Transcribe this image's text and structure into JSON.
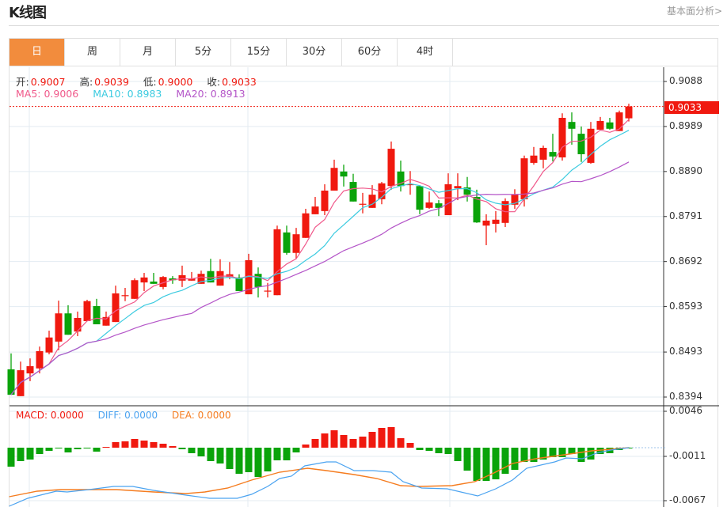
{
  "header": {
    "title": "K线图",
    "link": "基本面分析>"
  },
  "tabs": [
    "日",
    "周",
    "月",
    "5分",
    "15分",
    "30分",
    "60分",
    "4时"
  ],
  "active_tab": 0,
  "ohlc_legend": {
    "open_label": "开:",
    "open": "0.9007",
    "high_label": "高:",
    "high": "0.9039",
    "low_label": "低:",
    "low": "0.9000",
    "close_label": "收:",
    "close": "0.9033"
  },
  "ma_legend": {
    "ma5": "MA5: 0.9006",
    "ma10": "MA10: 0.8983",
    "ma20": "MA20: 0.8913"
  },
  "macd_legend": {
    "macd": "MACD: 0.0000",
    "diff": "DIFF: 0.0000",
    "dea": "DEA: 0.0000"
  },
  "current_price": "0.9033",
  "colors": {
    "up": "#f0190f",
    "down": "#0aa30a",
    "ma5": "#f0588a",
    "ma10": "#3ccbe0",
    "ma20": "#b455c8",
    "diff": "#4ba3f0",
    "dea": "#f57c1f",
    "accent": "#f28c3d"
  },
  "chart_data": [
    {
      "type": "candlestick",
      "title": "K线图",
      "y_ticks": [
        "0.9088",
        "0.8989",
        "0.8890",
        "0.8791",
        "0.8692",
        "0.8593",
        "0.8493",
        "0.8394"
      ],
      "ylim": [
        0.8394,
        0.9088
      ],
      "ohlc": [
        [
          0.8455,
          0.849,
          0.8399,
          0.8399
        ],
        [
          0.8396,
          0.8472,
          0.8396,
          0.8453
        ],
        [
          0.8446,
          0.8479,
          0.8429,
          0.8462
        ],
        [
          0.8457,
          0.8505,
          0.8446,
          0.8495
        ],
        [
          0.8492,
          0.854,
          0.8488,
          0.8525
        ],
        [
          0.8516,
          0.8606,
          0.8497,
          0.8578
        ],
        [
          0.8578,
          0.8596,
          0.8531,
          0.8531
        ],
        [
          0.8538,
          0.8582,
          0.8528,
          0.8568
        ],
        [
          0.8561,
          0.8608,
          0.8561,
          0.8605
        ],
        [
          0.8594,
          0.861,
          0.8554,
          0.8554
        ],
        [
          0.8551,
          0.8582,
          0.8551,
          0.857
        ],
        [
          0.8559,
          0.8639,
          0.8559,
          0.8622
        ],
        [
          0.8617,
          0.8634,
          0.8605,
          0.8618
        ],
        [
          0.861,
          0.8655,
          0.861,
          0.8651
        ],
        [
          0.8646,
          0.8667,
          0.8627,
          0.8657
        ],
        [
          0.8648,
          0.8667,
          0.8643,
          0.8643
        ],
        [
          0.8636,
          0.866,
          0.8631,
          0.8658
        ],
        [
          0.8655,
          0.866,
          0.8643,
          0.8651
        ],
        [
          0.865,
          0.8683,
          0.8636,
          0.8662
        ],
        [
          0.865,
          0.8669,
          0.865,
          0.8655
        ],
        [
          0.8643,
          0.8672,
          0.8643,
          0.8665
        ],
        [
          0.8671,
          0.8698,
          0.8646,
          0.8646
        ],
        [
          0.8639,
          0.8697,
          0.8639,
          0.8671
        ],
        [
          0.8658,
          0.8691,
          0.8653,
          0.8664
        ],
        [
          0.8657,
          0.8664,
          0.8627,
          0.8627
        ],
        [
          0.862,
          0.8709,
          0.862,
          0.8695
        ],
        [
          0.8665,
          0.8679,
          0.8613,
          0.8636
        ],
        [
          0.8627,
          0.8645,
          0.8613,
          0.8628
        ],
        [
          0.8618,
          0.8771,
          0.8618,
          0.8763
        ],
        [
          0.8756,
          0.8771,
          0.8707,
          0.8711
        ],
        [
          0.8711,
          0.8766,
          0.8698,
          0.8752
        ],
        [
          0.8744,
          0.8808,
          0.8744,
          0.8798
        ],
        [
          0.8796,
          0.8834,
          0.8796,
          0.8813
        ],
        [
          0.8803,
          0.8862,
          0.8794,
          0.8848
        ],
        [
          0.8848,
          0.8916,
          0.8848,
          0.8898
        ],
        [
          0.889,
          0.8905,
          0.8857,
          0.8879
        ],
        [
          0.8867,
          0.8885,
          0.8824,
          0.8824
        ],
        [
          0.8818,
          0.8843,
          0.8798,
          0.8819
        ],
        [
          0.881,
          0.886,
          0.881,
          0.8839
        ],
        [
          0.8829,
          0.8867,
          0.8818,
          0.8864
        ],
        [
          0.8858,
          0.8956,
          0.885,
          0.894
        ],
        [
          0.889,
          0.8914,
          0.8846,
          0.8858
        ],
        [
          0.886,
          0.8891,
          0.8839,
          0.8862
        ],
        [
          0.8858,
          0.886,
          0.8796,
          0.8806
        ],
        [
          0.881,
          0.8846,
          0.8808,
          0.8822
        ],
        [
          0.882,
          0.8827,
          0.8792,
          0.881
        ],
        [
          0.8794,
          0.8886,
          0.8794,
          0.8862
        ],
        [
          0.8853,
          0.8886,
          0.8827,
          0.8858
        ],
        [
          0.8855,
          0.8878,
          0.8824,
          0.8839
        ],
        [
          0.8834,
          0.885,
          0.8777,
          0.8778
        ],
        [
          0.8771,
          0.8796,
          0.8728,
          0.8782
        ],
        [
          0.8775,
          0.8803,
          0.8756,
          0.8784
        ],
        [
          0.8777,
          0.8831,
          0.8768,
          0.8825
        ],
        [
          0.8817,
          0.8851,
          0.8808,
          0.8839
        ],
        [
          0.8829,
          0.8925,
          0.8813,
          0.8919
        ],
        [
          0.8909,
          0.8944,
          0.8905,
          0.8925
        ],
        [
          0.8916,
          0.8947,
          0.8897,
          0.8942
        ],
        [
          0.8933,
          0.8973,
          0.8912,
          0.8923
        ],
        [
          0.8921,
          0.9018,
          0.8914,
          0.9008
        ],
        [
          0.8999,
          0.902,
          0.8949,
          0.8984
        ],
        [
          0.8973,
          0.8989,
          0.8911,
          0.8928
        ],
        [
          0.8909,
          0.8999,
          0.8907,
          0.8984
        ],
        [
          0.8982,
          0.901,
          0.8982,
          0.9001
        ],
        [
          0.8998,
          0.9008,
          0.8982,
          0.8984
        ],
        [
          0.8979,
          0.9024,
          0.8979,
          0.902
        ],
        [
          0.9007,
          0.9039,
          0.9,
          0.9033
        ]
      ],
      "series": [
        "MA5",
        "MA10",
        "MA20"
      ]
    },
    {
      "type": "bar+line",
      "title": "MACD",
      "y_ticks": [
        "0.0046",
        "-0.0011",
        "-0.0067"
      ],
      "ylim": [
        -0.0077,
        0.0046
      ],
      "histogram": [
        -0.0024,
        -0.0017,
        -0.0015,
        -0.0008,
        -0.0004,
        -0.0001,
        -0.0006,
        -0.0002,
        -0.0001,
        -0.0005,
        0.0001,
        0.0007,
        0.0008,
        0.0011,
        0.0009,
        0.0007,
        0.0005,
        0.0002,
        -0.0002,
        -0.0007,
        -0.0011,
        -0.0017,
        -0.002,
        -0.0027,
        -0.0033,
        -0.0031,
        -0.0037,
        -0.003,
        -0.0016,
        -0.0016,
        -0.0006,
        0.0004,
        0.0011,
        0.0018,
        0.0022,
        0.0016,
        0.0011,
        0.0014,
        0.002,
        0.0025,
        0.0026,
        0.0012,
        0.0006,
        -0.0003,
        -0.0004,
        -0.0007,
        -0.0008,
        -0.0017,
        -0.0029,
        -0.0042,
        -0.0042,
        -0.004,
        -0.0033,
        -0.0028,
        -0.0018,
        -0.0018,
        -0.0015,
        -0.0012,
        -0.0012,
        -0.0008,
        -0.0018,
        -0.0015,
        -0.0008,
        -0.0007,
        -0.0003,
        -0.0001
      ],
      "diff": [
        [
          -0.2,
          -0.0074
        ],
        [
          1.75,
          -0.0064
        ],
        [
          4.75,
          -0.0055
        ],
        [
          5.9,
          -0.0056
        ],
        [
          8.2,
          -0.0053
        ],
        [
          10.8,
          -0.0049
        ],
        [
          12.8,
          -0.0049
        ],
        [
          15,
          -0.0054
        ],
        [
          18.4,
          -0.006
        ],
        [
          20.9,
          -0.0064
        ],
        [
          23.8,
          -0.0064
        ],
        [
          25.3,
          -0.0059
        ],
        [
          27,
          -0.0049
        ],
        [
          28.25,
          -0.0039
        ],
        [
          29.5,
          -0.0036
        ],
        [
          30.9,
          -0.0023
        ],
        [
          33.2,
          -0.0018
        ],
        [
          34.2,
          -0.0018
        ],
        [
          36.1,
          -0.0029
        ],
        [
          38.1,
          -0.0029
        ],
        [
          40,
          -0.0031
        ],
        [
          41.25,
          -0.0043
        ],
        [
          43.2,
          -0.0051
        ],
        [
          45.9,
          -0.0052
        ],
        [
          49.1,
          -0.0061
        ],
        [
          51,
          -0.0052
        ],
        [
          52.75,
          -0.0041
        ],
        [
          54.25,
          -0.0026
        ],
        [
          57.2,
          -0.0018
        ],
        [
          58.4,
          -0.0013
        ],
        [
          60.1,
          -0.0014
        ],
        [
          61.6,
          -0.0007
        ],
        [
          63.1,
          -0.0003
        ],
        [
          65,
          0
        ]
      ],
      "dea": [
        [
          -0.2,
          -0.0062
        ],
        [
          2.75,
          -0.0055
        ],
        [
          5.2,
          -0.0053
        ],
        [
          8.7,
          -0.0053
        ],
        [
          11.1,
          -0.0053
        ],
        [
          15,
          -0.0056
        ],
        [
          18.4,
          -0.0058
        ],
        [
          20.4,
          -0.0056
        ],
        [
          22.8,
          -0.0051
        ],
        [
          25.3,
          -0.0041
        ],
        [
          28.25,
          -0.0031
        ],
        [
          31.2,
          -0.0026
        ],
        [
          33.2,
          -0.0029
        ],
        [
          36.1,
          -0.0034
        ],
        [
          38.5,
          -0.0039
        ],
        [
          41,
          -0.0048
        ],
        [
          42.9,
          -0.0049
        ],
        [
          46.4,
          -0.0048
        ],
        [
          48.8,
          -0.0043
        ],
        [
          50.8,
          -0.0032
        ],
        [
          52.75,
          -0.002
        ],
        [
          55.2,
          -0.0014
        ],
        [
          58.2,
          -0.0009
        ],
        [
          61.1,
          -0.0004
        ],
        [
          65,
          0
        ]
      ]
    }
  ]
}
